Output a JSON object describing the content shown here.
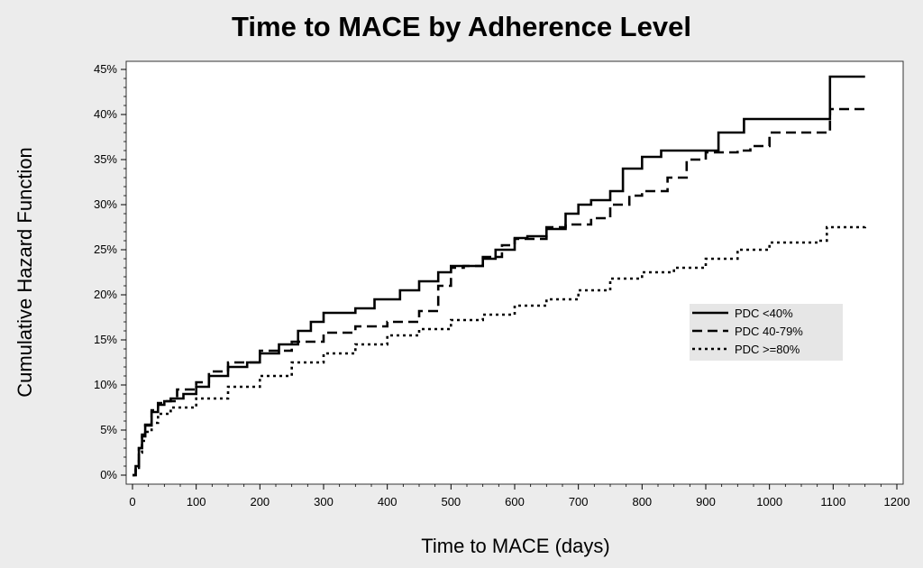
{
  "chart_data": {
    "type": "line",
    "step": true,
    "title": "Time to MACE by Adherence Level",
    "xlabel": "Time to MACE (days)",
    "ylabel": "Cumulative Hazard Function",
    "xlim": [
      0,
      1200
    ],
    "ylim": [
      0,
      45
    ],
    "xticks": [
      0,
      100,
      200,
      300,
      400,
      500,
      600,
      700,
      800,
      900,
      1000,
      1100,
      1200
    ],
    "yticks": [
      0,
      5,
      10,
      15,
      20,
      25,
      30,
      35,
      40,
      45
    ],
    "ytick_labels": [
      "0%",
      "5%",
      "10%",
      "15%",
      "20%",
      "25%",
      "30%",
      "35%",
      "40%",
      "45%"
    ],
    "grid": false,
    "legend": {
      "position": "right-middle"
    },
    "series": [
      {
        "name": "PDC <40%",
        "style": "solid",
        "points": [
          [
            0,
            0
          ],
          [
            5,
            1
          ],
          [
            10,
            3
          ],
          [
            15,
            4.5
          ],
          [
            20,
            5.5
          ],
          [
            30,
            7
          ],
          [
            40,
            7.8
          ],
          [
            50,
            8.2
          ],
          [
            60,
            8.5
          ],
          [
            80,
            9
          ],
          [
            100,
            9.8
          ],
          [
            120,
            11
          ],
          [
            150,
            12
          ],
          [
            180,
            12.5
          ],
          [
            200,
            13.5
          ],
          [
            230,
            14.5
          ],
          [
            260,
            16
          ],
          [
            280,
            17
          ],
          [
            300,
            18
          ],
          [
            320,
            18
          ],
          [
            350,
            18.5
          ],
          [
            380,
            19.5
          ],
          [
            420,
            20.5
          ],
          [
            450,
            21.5
          ],
          [
            480,
            22.5
          ],
          [
            500,
            23.2
          ],
          [
            520,
            23.2
          ],
          [
            550,
            24
          ],
          [
            570,
            25
          ],
          [
            600,
            26.3
          ],
          [
            620,
            26.5
          ],
          [
            650,
            27.3
          ],
          [
            680,
            29
          ],
          [
            700,
            30
          ],
          [
            720,
            30.5
          ],
          [
            750,
            31.5
          ],
          [
            770,
            34
          ],
          [
            800,
            35.3
          ],
          [
            830,
            36
          ],
          [
            900,
            36
          ],
          [
            920,
            38
          ],
          [
            960,
            39.5
          ],
          [
            1000,
            39.5
          ],
          [
            1090,
            39.5
          ],
          [
            1095,
            44.2
          ],
          [
            1150,
            44.2
          ]
        ]
      },
      {
        "name": "PDC 40-79%",
        "style": "dashed",
        "points": [
          [
            0,
            0
          ],
          [
            5,
            1
          ],
          [
            10,
            3
          ],
          [
            15,
            4.3
          ],
          [
            20,
            5.6
          ],
          [
            30,
            7.2
          ],
          [
            40,
            8
          ],
          [
            50,
            8.2
          ],
          [
            70,
            9.5
          ],
          [
            100,
            10.3
          ],
          [
            120,
            11.5
          ],
          [
            150,
            12.5
          ],
          [
            200,
            13.8
          ],
          [
            250,
            14.8
          ],
          [
            300,
            15.8
          ],
          [
            350,
            16.5
          ],
          [
            400,
            17
          ],
          [
            450,
            18.2
          ],
          [
            480,
            21
          ],
          [
            500,
            23
          ],
          [
            520,
            23.2
          ],
          [
            550,
            24.2
          ],
          [
            580,
            25.5
          ],
          [
            600,
            26.2
          ],
          [
            650,
            27.5
          ],
          [
            680,
            27.8
          ],
          [
            720,
            28.5
          ],
          [
            750,
            30
          ],
          [
            780,
            31
          ],
          [
            800,
            31.5
          ],
          [
            840,
            33
          ],
          [
            870,
            35
          ],
          [
            900,
            35.8
          ],
          [
            950,
            36
          ],
          [
            970,
            36.5
          ],
          [
            1000,
            38
          ],
          [
            1090,
            38
          ],
          [
            1095,
            40.6
          ],
          [
            1150,
            40.6
          ]
        ]
      },
      {
        "name": "PDC >=80%",
        "style": "dotted",
        "points": [
          [
            0,
            0
          ],
          [
            5,
            0.8
          ],
          [
            10,
            2.5
          ],
          [
            15,
            3.8
          ],
          [
            20,
            4.8
          ],
          [
            30,
            5.8
          ],
          [
            40,
            6.8
          ],
          [
            60,
            7.5
          ],
          [
            100,
            8.5
          ],
          [
            150,
            9.8
          ],
          [
            200,
            11
          ],
          [
            250,
            12.5
          ],
          [
            300,
            13.5
          ],
          [
            350,
            14.5
          ],
          [
            400,
            15.5
          ],
          [
            450,
            16.2
          ],
          [
            500,
            17.2
          ],
          [
            550,
            17.8
          ],
          [
            600,
            18.8
          ],
          [
            650,
            19.5
          ],
          [
            700,
            20.5
          ],
          [
            750,
            21.8
          ],
          [
            800,
            22.5
          ],
          [
            850,
            23
          ],
          [
            900,
            24
          ],
          [
            950,
            25
          ],
          [
            1000,
            25.8
          ],
          [
            1080,
            26
          ],
          [
            1090,
            27.5
          ],
          [
            1150,
            27.8
          ]
        ]
      }
    ]
  }
}
